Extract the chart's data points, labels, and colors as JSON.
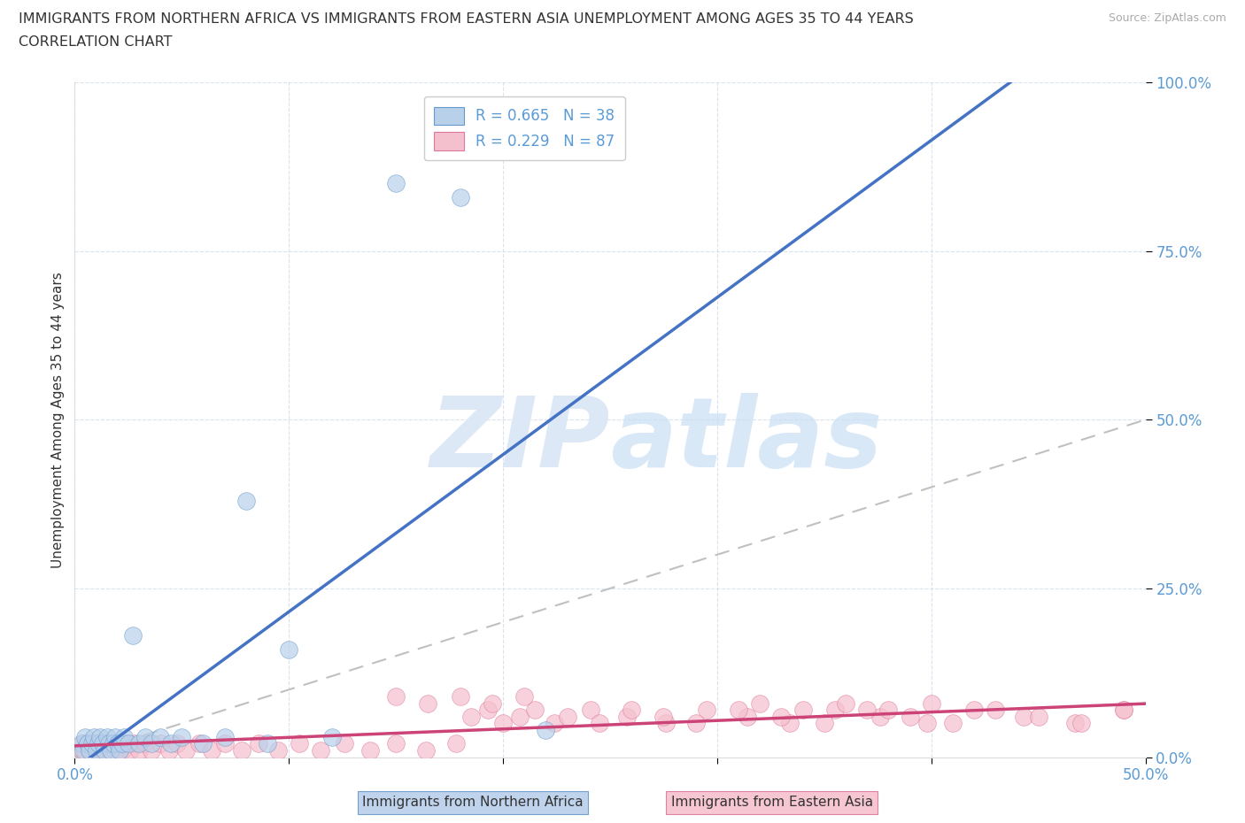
{
  "title_line1": "IMMIGRANTS FROM NORTHERN AFRICA VS IMMIGRANTS FROM EASTERN ASIA UNEMPLOYMENT AMONG AGES 35 TO 44 YEARS",
  "title_line2": "CORRELATION CHART",
  "source": "Source: ZipAtlas.com",
  "xlabel_label": "Immigrants from Northern Africa",
  "xlabel_label2": "Immigrants from Eastern Asia",
  "ylabel": "Unemployment Among Ages 35 to 44 years",
  "xlim": [
    0.0,
    0.5
  ],
  "ylim": [
    0.0,
    1.0
  ],
  "xticks": [
    0.0,
    0.1,
    0.2,
    0.3,
    0.4,
    0.5
  ],
  "yticks": [
    0.0,
    0.25,
    0.5,
    0.75,
    1.0
  ],
  "xtick_labels": [
    "0.0%",
    "",
    "",
    "",
    "",
    "50.0%"
  ],
  "ytick_labels_right": [
    "0.0%",
    "25.0%",
    "50.0%",
    "75.0%",
    "100.0%"
  ],
  "R_blue": 0.665,
  "N_blue": 38,
  "R_pink": 0.229,
  "N_pink": 87,
  "color_blue": "#b8d0ea",
  "color_blue_edge": "#6699cc",
  "color_blue_line": "#4472c4",
  "color_pink": "#f5c0ce",
  "color_pink_edge": "#dd7799",
  "color_pink_line": "#cc4477",
  "color_diag": "#c0c0c0",
  "title_color": "#333333",
  "axis_label_color": "#5b9bd5",
  "watermark_color": "#dce8f5",
  "blue_scatter_x": [
    0.003,
    0.004,
    0.005,
    0.006,
    0.007,
    0.008,
    0.009,
    0.01,
    0.011,
    0.012,
    0.013,
    0.014,
    0.015,
    0.016,
    0.017,
    0.018,
    0.019,
    0.02,
    0.021,
    0.022,
    0.023,
    0.025,
    0.027,
    0.03,
    0.033,
    0.036,
    0.04,
    0.045,
    0.05,
    0.06,
    0.07,
    0.08,
    0.09,
    0.1,
    0.12,
    0.15,
    0.18,
    0.22
  ],
  "blue_scatter_y": [
    0.02,
    0.01,
    0.03,
    0.02,
    0.01,
    0.02,
    0.03,
    0.01,
    0.02,
    0.03,
    0.02,
    0.01,
    0.03,
    0.02,
    0.01,
    0.02,
    0.03,
    0.02,
    0.01,
    0.02,
    0.03,
    0.02,
    0.18,
    0.02,
    0.03,
    0.02,
    0.03,
    0.02,
    0.03,
    0.02,
    0.03,
    0.38,
    0.02,
    0.16,
    0.03,
    0.85,
    0.83,
    0.04
  ],
  "pink_scatter_x": [
    0.003,
    0.004,
    0.005,
    0.006,
    0.007,
    0.008,
    0.009,
    0.01,
    0.011,
    0.012,
    0.013,
    0.014,
    0.015,
    0.016,
    0.017,
    0.018,
    0.019,
    0.02,
    0.022,
    0.024,
    0.026,
    0.028,
    0.03,
    0.033,
    0.036,
    0.04,
    0.044,
    0.048,
    0.052,
    0.058,
    0.064,
    0.07,
    0.078,
    0.086,
    0.095,
    0.105,
    0.115,
    0.126,
    0.138,
    0.15,
    0.164,
    0.178,
    0.193,
    0.208,
    0.224,
    0.241,
    0.258,
    0.276,
    0.295,
    0.314,
    0.334,
    0.355,
    0.376,
    0.398,
    0.42,
    0.443,
    0.467,
    0.49,
    0.505,
    0.185,
    0.2,
    0.215,
    0.23,
    0.245,
    0.26,
    0.275,
    0.29,
    0.31,
    0.33,
    0.35,
    0.37,
    0.39,
    0.41,
    0.43,
    0.45,
    0.47,
    0.49,
    0.32,
    0.34,
    0.36,
    0.38,
    0.4,
    0.15,
    0.165,
    0.18,
    0.195,
    0.21
  ],
  "pink_scatter_y": [
    0.01,
    0.02,
    0.01,
    0.02,
    0.01,
    0.02,
    0.01,
    0.02,
    0.01,
    0.02,
    0.01,
    0.02,
    0.01,
    0.02,
    0.01,
    0.02,
    0.01,
    0.02,
    0.01,
    0.02,
    0.01,
    0.02,
    0.01,
    0.02,
    0.01,
    0.02,
    0.01,
    0.02,
    0.01,
    0.02,
    0.01,
    0.02,
    0.01,
    0.02,
    0.01,
    0.02,
    0.01,
    0.02,
    0.01,
    0.02,
    0.01,
    0.02,
    0.07,
    0.06,
    0.05,
    0.07,
    0.06,
    0.05,
    0.07,
    0.06,
    0.05,
    0.07,
    0.06,
    0.05,
    0.07,
    0.06,
    0.05,
    0.07,
    0.02,
    0.06,
    0.05,
    0.07,
    0.06,
    0.05,
    0.07,
    0.06,
    0.05,
    0.07,
    0.06,
    0.05,
    0.07,
    0.06,
    0.05,
    0.07,
    0.06,
    0.05,
    0.07,
    0.08,
    0.07,
    0.08,
    0.07,
    0.08,
    0.09,
    0.08,
    0.09,
    0.08,
    0.09
  ]
}
